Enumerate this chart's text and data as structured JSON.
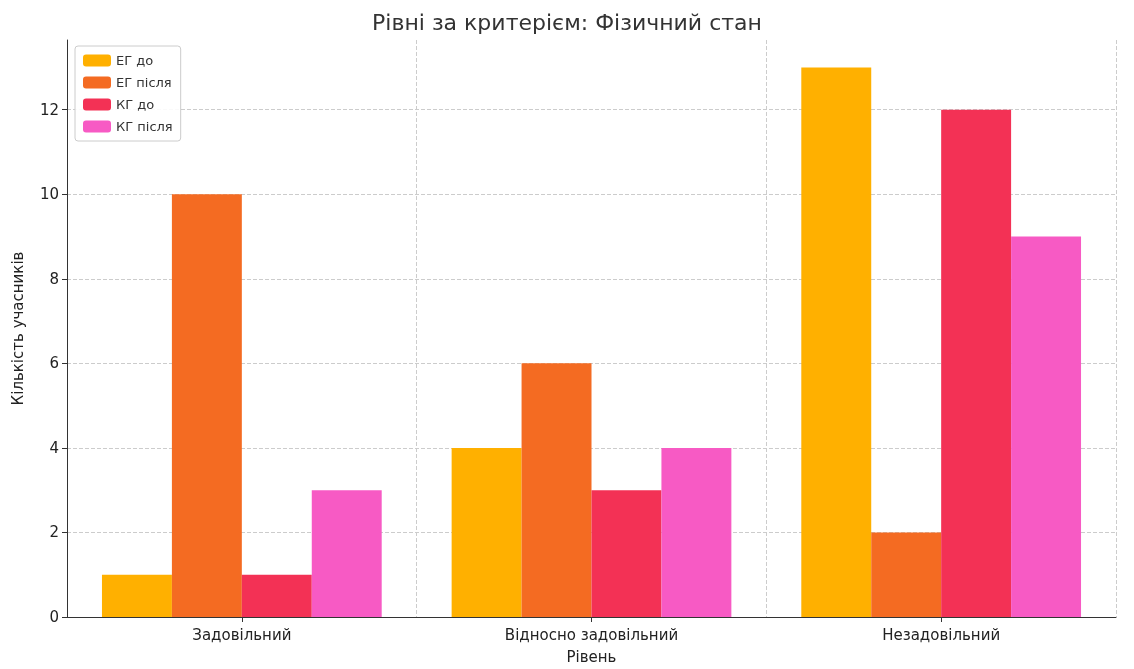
{
  "chart_data": {
    "type": "bar",
    "title": "Рівні за критерієм: Фізичний стан",
    "xlabel": "Рівень",
    "ylabel": "Кількість учасників",
    "categories": [
      "Задовільний",
      "Відносно задовільний",
      "Незадовільний"
    ],
    "series": [
      {
        "name": "ЕГ до",
        "color": "#ffb000",
        "values": [
          1,
          4,
          13
        ]
      },
      {
        "name": "ЕГ після",
        "color": "#f46b22",
        "values": [
          10,
          6,
          2
        ]
      },
      {
        "name": "КГ до",
        "color": "#f33155",
        "values": [
          1,
          3,
          12
        ]
      },
      {
        "name": "КГ після",
        "color": "#f75ac4",
        "values": [
          3,
          4,
          9
        ]
      }
    ],
    "ylim": [
      0,
      13.65
    ],
    "yticks": [
      0,
      2,
      4,
      6,
      8,
      10,
      12
    ],
    "grid": true,
    "legend": "top left"
  }
}
